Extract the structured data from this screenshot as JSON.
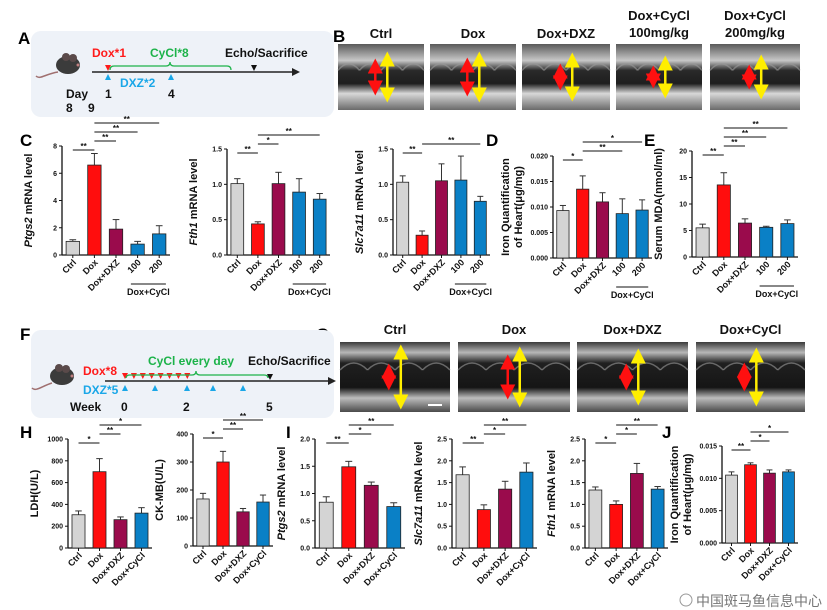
{
  "panels": {
    "A": "A",
    "B": "B",
    "C": "C",
    "D": "D",
    "E": "E",
    "F": "F",
    "G": "G",
    "H": "H",
    "I": "I",
    "J": "J"
  },
  "colors": {
    "Ctrl": "#d4d4d4",
    "Dox": "#ff0d0d",
    "Dox+DXZ": "#9a0b4c",
    "Dox+CyCl": "#0a80c6",
    "dox_text": "#ff1a1a",
    "cycl_text": "#1db34a",
    "dxz_text": "#1aa7e8",
    "timeline_bg": "#eef2f8"
  },
  "timeline_a": {
    "dox": "Dox*1",
    "cycl": "CyCl*8",
    "echo": "Echo/Sacrifice",
    "dxz": "DXZ*2",
    "day": "Day",
    "d1": "1",
    "d4": "4",
    "d8": "8",
    "d9": "9"
  },
  "timeline_f": {
    "dox": "Dox*8",
    "dxz": "DXZ*5",
    "cycl": "CyCl every day",
    "echo": "Echo/Sacrifice",
    "week": "Week",
    "w0": "0",
    "w2": "2",
    "w5": "5"
  },
  "echo_b": [
    {
      "line1": "Ctrl",
      "line2": ""
    },
    {
      "line1": "Dox",
      "line2": ""
    },
    {
      "line1": "Dox+DXZ",
      "line2": ""
    },
    {
      "line1": "Dox+CyCl",
      "line2": "100mg/kg"
    },
    {
      "line1": "Dox+CyCl",
      "line2": "200mg/kg"
    }
  ],
  "echo_g": [
    "Ctrl",
    "Dox",
    "Dox+DXZ",
    "Dox+CyCl"
  ],
  "watermark": "中国斑马鱼信息中心",
  "chart_data": [
    {
      "type": "bar",
      "panel": "C",
      "ylabel_italic": "Ptgs2",
      "ylabel": " mRNA level",
      "ylim": [
        0,
        8
      ],
      "yticks": [
        "0",
        "2",
        "4",
        "6",
        "8"
      ],
      "categories": [
        "Ctrl",
        "Dox",
        "Dox+DXZ",
        "100",
        "200"
      ],
      "group_label": "Dox+CyCl",
      "colors": [
        "Ctrl",
        "Dox",
        "Dox+DXZ",
        "Dox+CyCl",
        "Dox+CyCl"
      ],
      "values": [
        1.0,
        6.6,
        1.9,
        0.8,
        1.55
      ],
      "errors": [
        0.12,
        0.85,
        0.7,
        0.2,
        0.6
      ],
      "significance": [
        [
          0,
          1,
          "**"
        ],
        [
          1,
          2,
          "**"
        ],
        [
          1,
          3,
          "**"
        ],
        [
          1,
          4,
          "**"
        ]
      ]
    },
    {
      "type": "bar",
      "panel": "C",
      "ylabel_italic": "Fth1",
      "ylabel": " mRNA level",
      "ylim": [
        0,
        1.5
      ],
      "yticks": [
        "0.0",
        "0.5",
        "1.0",
        "1.5"
      ],
      "categories": [
        "Ctrl",
        "Dox",
        "Dox+DXZ",
        "100",
        "200"
      ],
      "group_label": "Dox+CyCl",
      "colors": [
        "Ctrl",
        "Dox",
        "Dox+DXZ",
        "Dox+CyCl",
        "Dox+CyCl"
      ],
      "values": [
        1.01,
        0.44,
        1.01,
        0.89,
        0.79
      ],
      "errors": [
        0.07,
        0.03,
        0.16,
        0.19,
        0.08
      ],
      "significance": [
        [
          0,
          1,
          "**"
        ],
        [
          1,
          2,
          "*"
        ],
        [
          1,
          4,
          "**"
        ]
      ]
    },
    {
      "type": "bar",
      "panel": "C",
      "ylabel_italic": "Slc7a11",
      "ylabel": " mRNA level",
      "ylim": [
        0,
        1.5
      ],
      "yticks": [
        "0.0",
        "0.5",
        "1.0",
        "1.5"
      ],
      "categories": [
        "Ctrl",
        "Dox",
        "Dox+DXZ",
        "100",
        "200"
      ],
      "group_label": "Dox+CyCl",
      "colors": [
        "Ctrl",
        "Dox",
        "Dox+DXZ",
        "Dox+CyCl",
        "Dox+CyCl"
      ],
      "values": [
        1.03,
        0.28,
        1.05,
        1.06,
        0.76
      ],
      "errors": [
        0.09,
        0.06,
        0.24,
        0.34,
        0.07
      ],
      "significance": [
        [
          0,
          1,
          "**"
        ],
        [
          1,
          4,
          "**"
        ]
      ]
    },
    {
      "type": "bar",
      "panel": "D",
      "ylabel_lines": [
        "Iron Quantification",
        "of Heart(μg/mg)"
      ],
      "ylim": [
        0,
        0.02
      ],
      "yticks": [
        "0.000",
        "0.005",
        "0.010",
        "0.015",
        "0.020"
      ],
      "categories": [
        "Ctrl",
        "Dox",
        "Dox+DXZ",
        "100",
        "200"
      ],
      "group_label": "Dox+CyCl",
      "colors": [
        "Ctrl",
        "Dox",
        "Dox+DXZ",
        "Dox+CyCl",
        "Dox+CyCl"
      ],
      "values": [
        0.0093,
        0.0135,
        0.011,
        0.0087,
        0.0094
      ],
      "errors": [
        0.001,
        0.0026,
        0.0018,
        0.0029,
        0.002
      ],
      "significance": [
        [
          0,
          1,
          "*"
        ],
        [
          1,
          3,
          "**"
        ],
        [
          1,
          4,
          "*"
        ]
      ]
    },
    {
      "type": "bar",
      "panel": "E",
      "ylabel": "Serum MDA(nmol/ml)",
      "ylim": [
        0,
        20
      ],
      "yticks": [
        "0",
        "5",
        "10",
        "15",
        "20"
      ],
      "categories": [
        "Ctrl",
        "Dox",
        "Dox+DXZ",
        "100",
        "200"
      ],
      "group_label": "Dox+CyCl",
      "colors": [
        "Ctrl",
        "Dox",
        "Dox+DXZ",
        "Dox+CyCl",
        "Dox+CyCl"
      ],
      "values": [
        5.5,
        13.6,
        6.4,
        5.6,
        6.3
      ],
      "errors": [
        0.7,
        2.3,
        0.8,
        0.2,
        0.7
      ],
      "significance": [
        [
          0,
          1,
          "**"
        ],
        [
          1,
          2,
          "**"
        ],
        [
          1,
          3,
          "**"
        ],
        [
          1,
          4,
          "**"
        ]
      ]
    },
    {
      "type": "bar",
      "panel": "H",
      "ylabel": "LDH(U/L)",
      "ylim": [
        0,
        1000
      ],
      "yticks": [
        "0",
        "200",
        "400",
        "600",
        "800",
        "1000"
      ],
      "categories": [
        "Ctrl",
        "Dox",
        "Dox+DXZ",
        "Dox+CyCl"
      ],
      "colors": [
        "Ctrl",
        "Dox",
        "Dox+DXZ",
        "Dox+CyCl"
      ],
      "values": [
        305,
        700,
        260,
        320
      ],
      "errors": [
        35,
        120,
        25,
        50
      ],
      "significance": [
        [
          0,
          1,
          "*"
        ],
        [
          1,
          2,
          "**"
        ],
        [
          1,
          3,
          "*"
        ]
      ]
    },
    {
      "type": "bar",
      "panel": "H",
      "ylabel": "CK-MB(U/L)",
      "ylim": [
        0,
        400
      ],
      "yticks": [
        "0",
        "100",
        "200",
        "300",
        "400"
      ],
      "categories": [
        "Ctrl",
        "Dox",
        "Dox+DXZ",
        "Dox+CyCl"
      ],
      "colors": [
        "Ctrl",
        "Dox",
        "Dox+DXZ",
        "Dox+CyCl"
      ],
      "values": [
        168,
        300,
        122,
        157
      ],
      "errors": [
        20,
        38,
        12,
        25
      ],
      "significance": [
        [
          0,
          1,
          "*"
        ],
        [
          1,
          2,
          "**"
        ],
        [
          1,
          3,
          "**"
        ]
      ]
    },
    {
      "type": "bar",
      "panel": "I",
      "ylabel_italic": "Ptgs2",
      "ylabel": " mRNA level",
      "ylim": [
        0,
        2
      ],
      "yticks": [
        "0.0",
        "0.5",
        "1.0",
        "1.5",
        "2.0"
      ],
      "categories": [
        "Ctrl",
        "Dox",
        "Dox+DXZ",
        "Dox+CyCl"
      ],
      "colors": [
        "Ctrl",
        "Dox",
        "Dox+DXZ",
        "Dox+CyCl"
      ],
      "values": [
        0.84,
        1.49,
        1.15,
        0.76
      ],
      "errors": [
        0.1,
        0.1,
        0.06,
        0.07
      ],
      "significance": [
        [
          0,
          1,
          "**"
        ],
        [
          1,
          2,
          "*"
        ],
        [
          1,
          3,
          "**"
        ]
      ]
    },
    {
      "type": "bar",
      "panel": "I",
      "ylabel_italic": "Slc7a11",
      "ylabel": " mRNA level",
      "ylim": [
        0,
        2.5
      ],
      "yticks": [
        "0.0",
        "0.5",
        "1.0",
        "1.5",
        "2.0",
        "2.5"
      ],
      "categories": [
        "Ctrl",
        "Dox",
        "Dox+DXZ",
        "Dox+CyCl"
      ],
      "colors": [
        "Ctrl",
        "Dox",
        "Dox+DXZ",
        "Dox+CyCl"
      ],
      "values": [
        1.68,
        0.88,
        1.35,
        1.74
      ],
      "errors": [
        0.18,
        0.11,
        0.18,
        0.21
      ],
      "significance": [
        [
          0,
          1,
          "**"
        ],
        [
          1,
          2,
          "*"
        ],
        [
          1,
          3,
          "**"
        ]
      ]
    },
    {
      "type": "bar",
      "panel": "I",
      "ylabel_italic": "Fth1",
      "ylabel": " mRNA level",
      "ylim": [
        0,
        2.5
      ],
      "yticks": [
        "0.0",
        "0.5",
        "1.0",
        "1.5",
        "2.0",
        "2.5"
      ],
      "categories": [
        "Ctrl",
        "Dox",
        "Dox+DXZ",
        "Dox+CyCl"
      ],
      "colors": [
        "Ctrl",
        "Dox",
        "Dox+DXZ",
        "Dox+CyCl"
      ],
      "values": [
        1.33,
        1.0,
        1.71,
        1.35
      ],
      "errors": [
        0.07,
        0.08,
        0.23,
        0.06
      ],
      "significance": [
        [
          0,
          1,
          "*"
        ],
        [
          1,
          2,
          "*"
        ],
        [
          1,
          3,
          "**"
        ]
      ]
    },
    {
      "type": "bar",
      "panel": "J",
      "ylabel_lines": [
        "Iron Quantification",
        "of Heart(μg/mg)"
      ],
      "ylim": [
        0,
        0.015
      ],
      "yticks": [
        "0.000",
        "0.005",
        "0.010",
        "0.015"
      ],
      "categories": [
        "Ctrl",
        "Dox",
        "Dox+DXZ",
        "Dox+CyCl"
      ],
      "colors": [
        "Ctrl",
        "Dox",
        "Dox+DXZ",
        "Dox+CyCl"
      ],
      "values": [
        0.0105,
        0.0121,
        0.0108,
        0.011
      ],
      "errors": [
        0.0005,
        0.0003,
        0.0005,
        0.0003
      ],
      "significance": [
        [
          0,
          1,
          "**"
        ],
        [
          1,
          2,
          "*"
        ],
        [
          1,
          3,
          "*"
        ]
      ]
    }
  ]
}
